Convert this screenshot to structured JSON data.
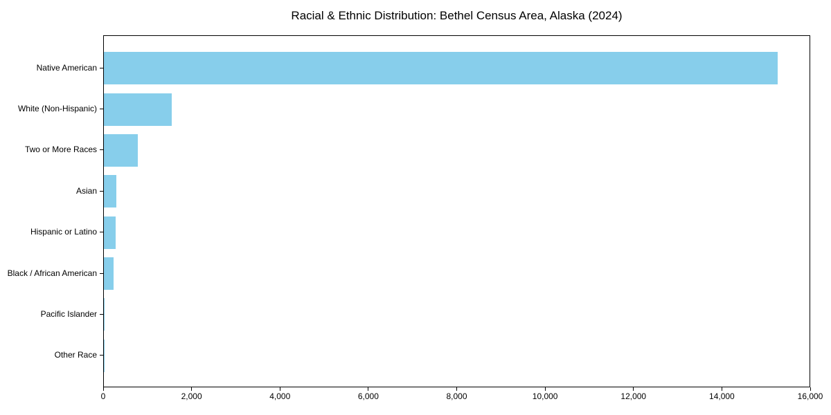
{
  "page": {
    "background": "#ffffff"
  },
  "chart_data": {
    "type": "bar",
    "orientation": "horizontal",
    "title": "Racial & Ethnic Distribution: Bethel Census Area, Alaska (2024)",
    "categories": [
      "Native American",
      "White (Non-Hispanic)",
      "Two or More Races",
      "Asian",
      "Hispanic or Latino",
      "Black / African American",
      "Pacific Islander",
      "Other Race"
    ],
    "values": [
      15240,
      1530,
      775,
      280,
      270,
      220,
      10,
      5
    ],
    "bar_color": "#87CEEB",
    "text_color": "#000000",
    "spine_color": "#000000",
    "xlabel": "",
    "ylabel": "",
    "xlim": [
      0,
      16000
    ],
    "x_ticks": [
      0,
      2000,
      4000,
      6000,
      8000,
      10000,
      12000,
      14000,
      16000
    ],
    "x_tick_labels": [
      "0",
      "2,000",
      "4,000",
      "6,000",
      "8,000",
      "10,000",
      "12,000",
      "14,000",
      "16,000"
    ],
    "grid": false,
    "legend": "none"
  }
}
